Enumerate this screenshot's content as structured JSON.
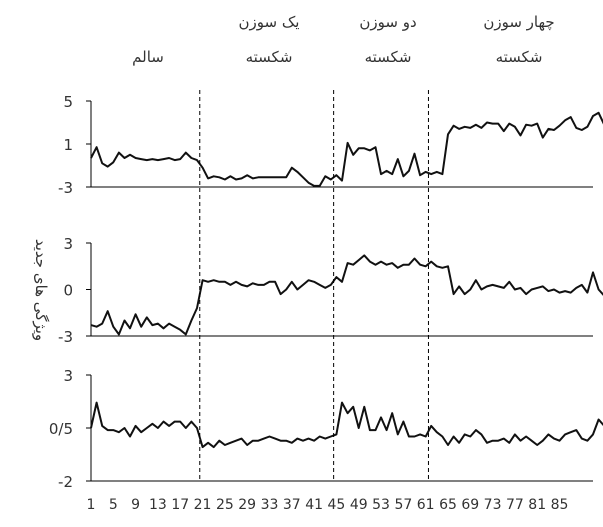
{
  "chart_data": {
    "type": "line",
    "ylabel": "ویژگی های جدید",
    "segment_labels": [
      {
        "line1": "",
        "line2": "سالم"
      },
      {
        "line1": "یک سوزن",
        "line2": "شکسته"
      },
      {
        "line1": "دو سوزن",
        "line2": "شکسته"
      },
      {
        "line1": "چهار سوزن",
        "line2": "شکسته"
      }
    ],
    "segment_boundaries": [
      20.5,
      44.5,
      61.5
    ],
    "x_tick_labels": [
      "1",
      "5",
      "9",
      "13",
      "17",
      "21",
      "25",
      "29",
      "33",
      "37",
      "41",
      "45",
      "49",
      "53",
      "57",
      "61",
      "65",
      "69",
      "73",
      "77",
      "81",
      "85"
    ],
    "x_tick_values": [
      1,
      5,
      9,
      13,
      17,
      21,
      25,
      29,
      33,
      37,
      41,
      45,
      49,
      53,
      57,
      61,
      65,
      69,
      73,
      77,
      81,
      85
    ],
    "xlim": [
      1,
      91
    ],
    "grid": false,
    "panels": [
      {
        "name": "panel-1",
        "ylim": [
          -3,
          5
        ],
        "y_tick_labels": [
          "5",
          "1",
          "-3"
        ],
        "y_tick_values": [
          5,
          1,
          -3
        ],
        "values": [
          -0.3,
          0.7,
          -0.8,
          -1.1,
          -0.7,
          0.2,
          -0.3,
          0,
          -0.3,
          -0.4,
          -0.5,
          -0.4,
          -0.5,
          -0.4,
          -0.3,
          -0.5,
          -0.4,
          0.2,
          -0.3,
          -0.5,
          -1.2,
          -2.2,
          -2.0,
          -2.1,
          -2.3,
          -2.0,
          -2.3,
          -2.2,
          -1.9,
          -2.2,
          -2.1,
          -2.1,
          -2.1,
          -2.1,
          -2.1,
          -2.1,
          -1.2,
          -1.6,
          -2.1,
          -2.6,
          -2.9,
          -2.9,
          -2.0,
          -2.3,
          -1.9,
          -2.4,
          1.1,
          0.0,
          0.6,
          0.6,
          0.4,
          0.7,
          -1.8,
          -1.5,
          -1.8,
          -0.4,
          -2.0,
          -1.5,
          0.1,
          -1.9,
          -1.6,
          -1.8,
          -1.6,
          -1.8,
          1.9,
          2.7,
          2.4,
          2.6,
          2.5,
          2.8,
          2.5,
          3.0,
          2.9,
          2.9,
          2.2,
          2.9,
          2.6,
          1.8,
          2.8,
          2.7,
          2.9,
          1.6,
          2.4,
          2.3,
          2.7,
          3.2,
          3.5,
          2.5,
          2.3,
          2.6,
          3.6,
          3.9,
          2.8,
          2.4
        ]
      },
      {
        "name": "panel-2",
        "ylim": [
          -3,
          3
        ],
        "y_tick_labels": [
          "3",
          "0",
          "-3"
        ],
        "y_tick_values": [
          3,
          0,
          -3
        ],
        "values": [
          -2.3,
          -2.4,
          -2.2,
          -1.4,
          -2.4,
          -2.9,
          -2.0,
          -2.5,
          -1.6,
          -2.4,
          -1.8,
          -2.3,
          -2.2,
          -2.5,
          -2.2,
          -2.4,
          -2.6,
          -2.9,
          -2.0,
          -1.2,
          0.6,
          0.5,
          0.6,
          0.5,
          0.5,
          0.3,
          0.5,
          0.3,
          0.2,
          0.4,
          0.3,
          0.3,
          0.5,
          0.5,
          -0.3,
          0.0,
          0.5,
          0.0,
          0.3,
          0.6,
          0.5,
          0.3,
          0.1,
          0.3,
          0.8,
          0.5,
          1.7,
          1.6,
          1.9,
          2.2,
          1.8,
          1.6,
          1.8,
          1.6,
          1.7,
          1.4,
          1.6,
          1.6,
          2.0,
          1.6,
          1.5,
          1.8,
          1.5,
          1.4,
          1.5,
          -0.3,
          0.2,
          -0.3,
          0.0,
          0.6,
          0.0,
          0.2,
          0.3,
          0.2,
          0.1,
          0.5,
          0.0,
          0.1,
          -0.3,
          0.0,
          0.1,
          0.2,
          -0.1,
          0.0,
          -0.2,
          -0.1,
          -0.2,
          0.1,
          0.3,
          -0.2,
          1.1,
          0.0,
          -0.4
        ]
      },
      {
        "name": "panel-3",
        "ylim": [
          -2,
          3
        ],
        "y_tick_labels": [
          "3",
          "0/5",
          "-2"
        ],
        "y_tick_values": [
          3,
          0.5,
          -2
        ],
        "values": [
          0.5,
          1.7,
          0.6,
          0.4,
          0.4,
          0.3,
          0.5,
          0.1,
          0.6,
          0.3,
          0.5,
          0.7,
          0.5,
          0.8,
          0.6,
          0.8,
          0.8,
          0.5,
          0.8,
          0.5,
          -0.4,
          -0.2,
          -0.4,
          -0.1,
          -0.3,
          -0.2,
          -0.1,
          0.0,
          -0.3,
          -0.1,
          -0.1,
          0.0,
          0.1,
          0.0,
          -0.1,
          -0.1,
          -0.2,
          0.0,
          -0.1,
          0.0,
          -0.1,
          0.1,
          0.0,
          0.1,
          0.2,
          1.7,
          1.2,
          1.5,
          0.5,
          1.5,
          0.4,
          0.4,
          1.0,
          0.4,
          1.2,
          0.2,
          0.8,
          0.1,
          0.1,
          0.2,
          0.1,
          0.6,
          0.3,
          0.1,
          -0.3,
          0.1,
          -0.2,
          0.2,
          0.1,
          0.4,
          0.2,
          -0.2,
          -0.1,
          -0.1,
          0.0,
          -0.2,
          0.2,
          -0.1,
          0.1,
          -0.1,
          -0.3,
          -0.1,
          0.2,
          0.0,
          -0.1,
          0.2,
          0.3,
          0.4,
          0.0,
          -0.1,
          0.2,
          0.9,
          0.6,
          -0.2
        ]
      }
    ]
  }
}
